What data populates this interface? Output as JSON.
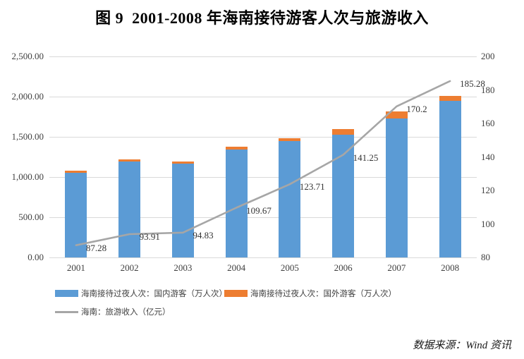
{
  "title": "图 9  2001-2008 年海南接待游客人次与旅游收入",
  "source_note": "数据来源：Wind 资讯",
  "colors": {
    "domestic_bar": "#5B9BD5",
    "foreign_bar": "#ED7D31",
    "revenue_line": "#A6A6A6",
    "gridline": "#D9D9D9",
    "axis_text": "#404040",
    "title_text": "#000000"
  },
  "chart_data": {
    "type": "combo: stacked bar + line (secondary axis)",
    "title": "图 9  2001-2008 年海南接待游客人次与旅游收入",
    "categories": [
      "2001",
      "2002",
      "2003",
      "2004",
      "2005",
      "2006",
      "2007",
      "2008"
    ],
    "series": [
      {
        "name": "海南接待过夜人次：国内游客（万人次）",
        "type": "bar",
        "stack": "visitors",
        "axis": "left",
        "color_key": "domestic_bar",
        "values": [
          1055,
          1190,
          1165,
          1345,
          1445,
          1525,
          1730,
          1945
        ]
      },
      {
        "name": "海南接待过夜人次：国外游客（万人次）",
        "type": "bar",
        "stack": "visitors",
        "axis": "left",
        "color_key": "foreign_bar",
        "values": [
          25,
          30,
          30,
          30,
          40,
          70,
          85,
          65
        ]
      },
      {
        "name": "海南：旅游收入（亿元）",
        "type": "line",
        "axis": "right",
        "color_key": "revenue_line",
        "values": [
          87.28,
          93.91,
          94.83,
          109.67,
          123.71,
          141.25,
          170.2,
          185.28
        ],
        "data_labels": [
          "87.28",
          "93.91",
          "94.83",
          "109.67",
          "123.71",
          "141.25",
          "170.2",
          "185.28"
        ]
      }
    ],
    "left_axis": {
      "min": 0,
      "max": 2500,
      "ticks": [
        {
          "label": "0.00",
          "value": 0
        },
        {
          "label": "500.00",
          "value": 500
        },
        {
          "label": "1,000.00",
          "value": 1000
        },
        {
          "label": "1,500.00",
          "value": 1500
        },
        {
          "label": "2,000.00",
          "value": 2000
        },
        {
          "label": "2,500.00",
          "value": 2500
        }
      ]
    },
    "right_axis": {
      "min": 80,
      "max": 200,
      "ticks": [
        {
          "label": "80",
          "value": 80
        },
        {
          "label": "100",
          "value": 100
        },
        {
          "label": "120",
          "value": 120
        },
        {
          "label": "140",
          "value": 140
        },
        {
          "label": "160",
          "value": 160
        },
        {
          "label": "180",
          "value": 180
        },
        {
          "label": "200",
          "value": 200
        }
      ]
    },
    "grid": "horizontal gridlines on primary axis only",
    "legend_position": "bottom-left, two rows"
  }
}
